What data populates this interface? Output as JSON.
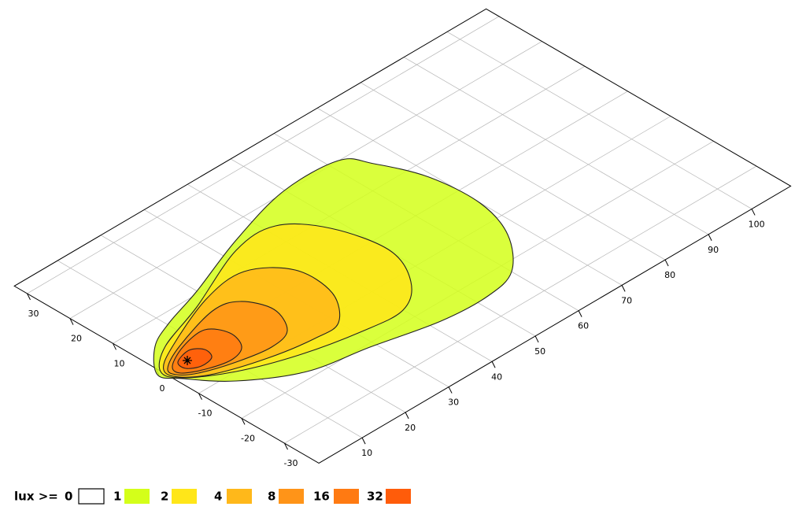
{
  "chart_data": {
    "type": "contour",
    "xlim": [
      0,
      109
    ],
    "xticks": [
      10,
      20,
      30,
      40,
      50,
      60,
      70,
      80,
      90,
      100
    ],
    "ylim": [
      -38,
      33
    ],
    "yticks": [
      30,
      20,
      10,
      0,
      -10,
      -20,
      -30
    ],
    "grid": true,
    "legend_title": "lux >=",
    "levels": [
      0,
      1,
      2,
      4,
      8,
      16,
      32
    ],
    "colors": [
      "#ffffff",
      "#d4ff1a",
      "#ffe619",
      "#ffb81a",
      "#ff9418",
      "#ff7a12",
      "#ff5c0a"
    ]
  }
}
